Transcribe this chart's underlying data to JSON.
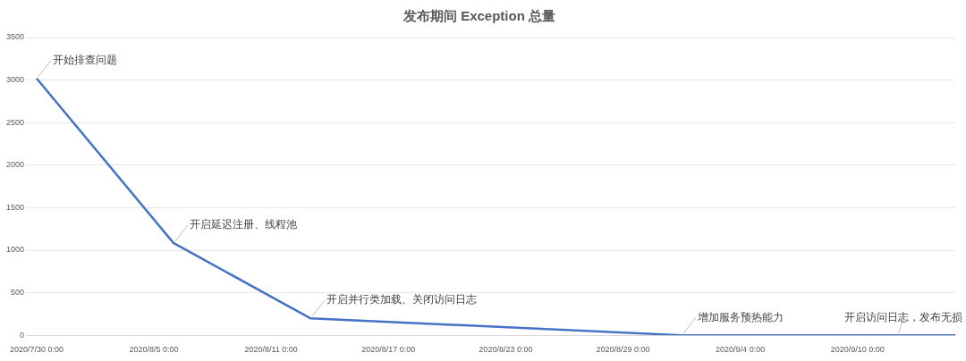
{
  "chart_data": {
    "type": "line",
    "title": "发布期间 Exception 总量",
    "x": [
      "2020-07-30",
      "2020-08-06",
      "2020-08-13",
      "2020-09-01",
      "2020-09-12",
      "2020-09-15"
    ],
    "values": [
      3020,
      1085,
      200,
      0,
      0,
      0
    ],
    "color": "#4472c4",
    "xlim": [
      "2020-07-29T12:00",
      "2020-09-15"
    ],
    "xticks": [
      {
        "value": "2020-07-30",
        "label": "2020/7/30 0:00"
      },
      {
        "value": "2020-08-05",
        "label": "2020/8/5 0:00"
      },
      {
        "value": "2020-08-11",
        "label": "2020/8/11 0:00"
      },
      {
        "value": "2020-08-17",
        "label": "2020/8/17 0:00"
      },
      {
        "value": "2020-08-23",
        "label": "2020/8/23 0:00"
      },
      {
        "value": "2020-08-29",
        "label": "2020/8/29 0:00"
      },
      {
        "value": "2020-09-04",
        "label": "2020/9/4 0:00"
      },
      {
        "value": "2020-09-10",
        "label": "2020/9/10 0:00"
      }
    ],
    "ylim": [
      0,
      3500
    ],
    "yticks": [
      0,
      500,
      1000,
      1500,
      2000,
      2500,
      3000,
      3500
    ],
    "grid": "y",
    "marker": "none",
    "line_style": "solid",
    "annotations": [
      {
        "text": "开始排查问题",
        "x": "2020-07-30",
        "y": 3020
      },
      {
        "text": "开启延迟注册、线程池",
        "x": "2020-08-06",
        "y": 1085
      },
      {
        "text": "开启并行类加载、关闭访问日志",
        "x": "2020-08-13",
        "y": 200
      },
      {
        "text": "增加服务预热能力",
        "x": "2020-09-01",
        "y": 0
      },
      {
        "text": "开启访问日志，发布无损",
        "x": "2020-09-12",
        "y": 0
      }
    ]
  }
}
